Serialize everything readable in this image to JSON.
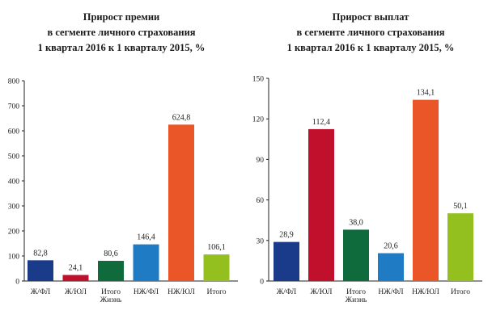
{
  "charts": [
    {
      "title_lines": [
        "Прирост премии",
        "в сегменте личного страхования",
        "1 квартал 2016 к 1 кварталу 2015, %"
      ]
    },
    {
      "title_lines": [
        "Прирост выплат",
        "в сегменте личного страхования",
        "1 квартал 2016 к 1 кварталу 2015, %"
      ]
    }
  ],
  "chart_data": [
    {
      "type": "bar",
      "title": "Прирост премии в сегменте личного страхования 1 квартал 2016 к 1 кварталу 2015, %",
      "categories": [
        [
          "Ж/ФЛ"
        ],
        [
          "Ж/ЮЛ"
        ],
        [
          "Итого",
          "Жизнь"
        ],
        [
          "НЖ/ФЛ"
        ],
        [
          "НЖ/ЮЛ"
        ],
        [
          "Итого"
        ]
      ],
      "values": [
        82.8,
        24.1,
        80.6,
        146.4,
        624.8,
        106.1
      ],
      "value_labels": [
        "82,8",
        "24,1",
        "80,6",
        "146,4",
        "624,8",
        "106,1"
      ],
      "colors": [
        "#1a3a8a",
        "#c0102c",
        "#0f6b3c",
        "#1f7cc4",
        "#ea5628",
        "#93c01f"
      ],
      "ylim": [
        0,
        800
      ],
      "yticks": [
        0,
        100,
        200,
        300,
        400,
        500,
        600,
        700,
        800
      ],
      "xlabel": "",
      "ylabel": "",
      "grid": false
    },
    {
      "type": "bar",
      "title": "Прирост выплат в сегменте личного страхования 1 квартал 2016 к 1 кварталу 2015, %",
      "categories": [
        [
          "Ж/ФЛ"
        ],
        [
          "Ж/ЮЛ"
        ],
        [
          "Итого",
          "Жизнь"
        ],
        [
          "НЖ/ФЛ"
        ],
        [
          "НЖ/ЮЛ"
        ],
        [
          "Итого"
        ]
      ],
      "values": [
        28.9,
        112.4,
        38.0,
        20.6,
        134.1,
        50.1
      ],
      "value_labels": [
        "28,9",
        "112,4",
        "38,0",
        "20,6",
        "134,1",
        "50,1"
      ],
      "colors": [
        "#1a3a8a",
        "#c0102c",
        "#0f6b3c",
        "#1f7cc4",
        "#ea5628",
        "#93c01f"
      ],
      "ylim": [
        0,
        150
      ],
      "yticks": [
        0,
        30,
        60,
        90,
        120,
        150
      ],
      "xlabel": "",
      "ylabel": "",
      "grid": false
    }
  ]
}
